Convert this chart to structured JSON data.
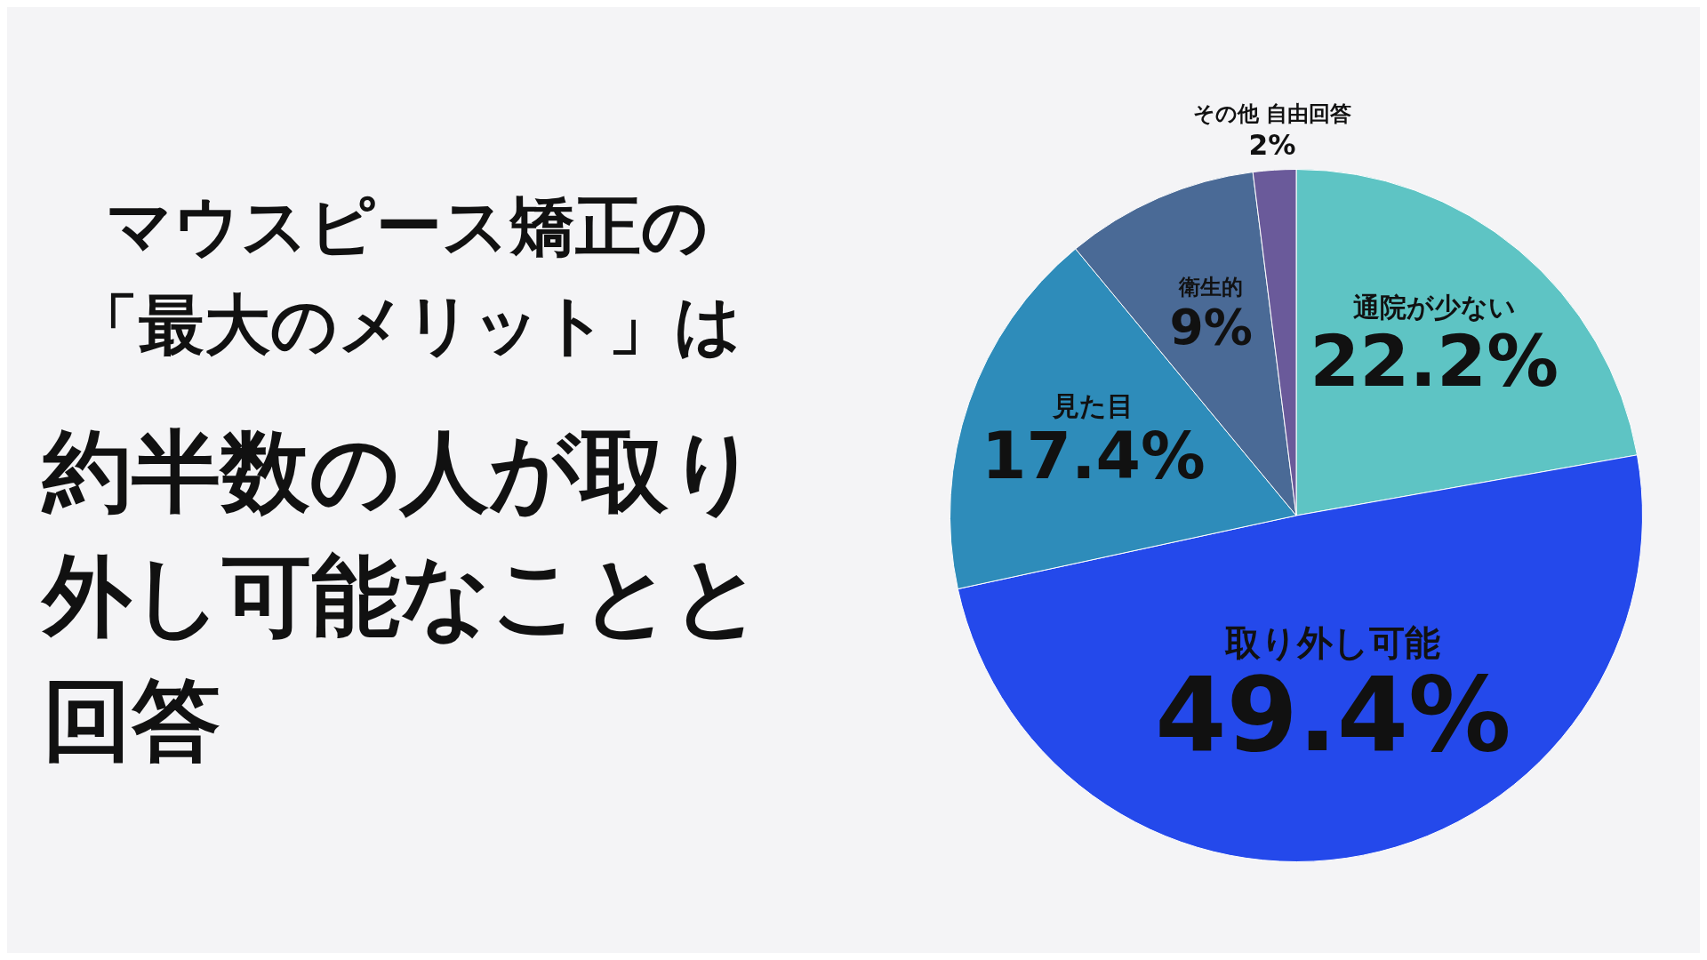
{
  "chart_data": {
    "type": "pie",
    "title": "マウスピース矯正の「最大のメリット」は",
    "subtitle": "約半数の人が取り外し可能なことと回答",
    "categories": [
      "通院が少ない",
      "取り外し可能",
      "見た目",
      "衛生的",
      "その他 自由回答"
    ],
    "values": [
      22.2,
      49.4,
      17.4,
      9,
      2
    ],
    "value_labels": [
      "22.2%",
      "49.4%",
      "17.4%",
      "9%",
      "2%"
    ],
    "colors": [
      "#5ec4c4",
      "#2449eb",
      "#2e8cba",
      "#4a6a96",
      "#6a5a9a"
    ],
    "legend": false
  }
}
